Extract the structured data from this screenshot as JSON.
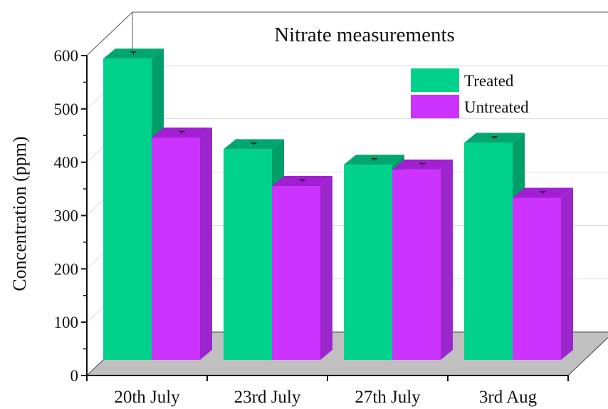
{
  "chart_data": {
    "type": "bar",
    "title": "Nitrate measurements",
    "xlabel": "",
    "ylabel": "Concentration (ppm)",
    "categories": [
      "20th July",
      "23rd July",
      "27th July",
      "3rd Aug"
    ],
    "series": [
      {
        "name": "Treated",
        "values": [
          565,
          395,
          366,
          407
        ],
        "errors": [
          3,
          2,
          2,
          2
        ],
        "color": "#00d28c",
        "top_color": "#00a870",
        "side_color": "#009e69"
      },
      {
        "name": "Untreated",
        "values": [
          417,
          326,
          357,
          304
        ],
        "errors": [
          2,
          2,
          2,
          2
        ],
        "color": "#cc33ff",
        "top_color": "#a21fd4",
        "side_color": "#9b26cc"
      }
    ],
    "yticks": [
      0,
      100,
      200,
      300,
      400,
      500,
      600
    ],
    "ylim": [
      0,
      600
    ],
    "grid": true,
    "legend_position": "top-right",
    "floor_color": "#c0c0c0"
  }
}
